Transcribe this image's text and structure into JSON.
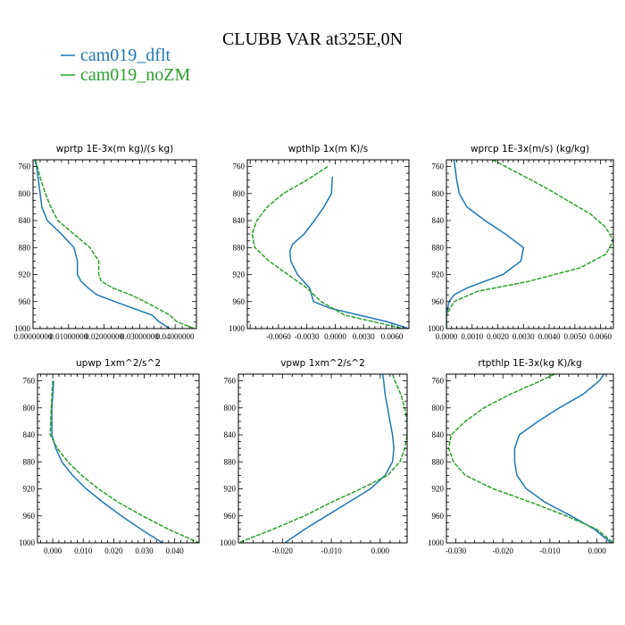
{
  "title": "CLUBB VAR at325E,0N",
  "legend": [
    {
      "label": "cam019_dflt",
      "color": "#1f77b4"
    },
    {
      "label": "cam019_noZM",
      "color": "#2ca02c"
    }
  ],
  "chart_data": [
    {
      "type": "line",
      "title": "wprtp  1E-3x(m kg)/(s kg)",
      "xlim": [
        0.0,
        0.046
      ],
      "ylim": [
        1000,
        750
      ],
      "xticks": [
        0.0,
        0.01,
        0.02,
        0.03,
        0.04
      ],
      "xtick_labels": [
        "0.00000000",
        "0.01000000",
        "0.02000000",
        "0.03000000",
        "0.04000000"
      ],
      "yticks": [
        760,
        800,
        840,
        880,
        920,
        960,
        1000
      ],
      "grid": false,
      "series": [
        {
          "name": "cam019_dflt",
          "color": "#1f77b4",
          "y": [
            750,
            760,
            780,
            800,
            820,
            840,
            860,
            880,
            900,
            920,
            930,
            940,
            950,
            960,
            980,
            990,
            1000
          ],
          "x": [
            0.0005,
            0.001,
            0.0015,
            0.002,
            0.0025,
            0.004,
            0.008,
            0.0115,
            0.0125,
            0.0125,
            0.0135,
            0.0155,
            0.018,
            0.023,
            0.0335,
            0.0355,
            0.0385
          ]
        },
        {
          "name": "cam019_noZM",
          "color": "#2ca02c",
          "y": [
            750,
            760,
            780,
            800,
            820,
            840,
            860,
            880,
            900,
            920,
            930,
            940,
            950,
            960,
            980,
            990,
            1000
          ],
          "x": [
            0.0007,
            0.0012,
            0.0022,
            0.0035,
            0.005,
            0.007,
            0.0115,
            0.016,
            0.0185,
            0.0185,
            0.0192,
            0.0225,
            0.0275,
            0.0315,
            0.0385,
            0.0405,
            0.0455
          ]
        }
      ]
    },
    {
      "type": "line",
      "title": "wpthlp  1x(m K)/s",
      "xlim": [
        -0.0093,
        0.0078
      ],
      "ylim": [
        1000,
        750
      ],
      "xticks": [
        -0.006,
        -0.003,
        0.0,
        0.003,
        0.006
      ],
      "xtick_labels": [
        "-0.0060",
        "-0.0030",
        "0.0000",
        "0.0030",
        "0.0060"
      ],
      "yticks": [
        760,
        800,
        840,
        880,
        920,
        960,
        1000
      ],
      "grid": false,
      "series": [
        {
          "name": "cam019_dflt",
          "color": "#1f77b4",
          "y": [
            775,
            800,
            820,
            840,
            860,
            875,
            885,
            900,
            920,
            940,
            950,
            960,
            970,
            980,
            990,
            1000
          ],
          "x": [
            -0.0003,
            -0.0004,
            -0.0012,
            -0.0022,
            -0.0033,
            -0.0045,
            -0.0048,
            -0.0047,
            -0.004,
            -0.0027,
            -0.0025,
            -0.0023,
            -0.0005,
            0.0025,
            0.0055,
            0.0078
          ]
        },
        {
          "name": "cam019_noZM",
          "color": "#2ca02c",
          "y": [
            760,
            780,
            800,
            820,
            840,
            860,
            880,
            900,
            920,
            940,
            960,
            980,
            1000
          ],
          "x": [
            -0.0008,
            -0.003,
            -0.0055,
            -0.0072,
            -0.0083,
            -0.0088,
            -0.0085,
            -0.007,
            -0.005,
            -0.003,
            -0.0015,
            0.001,
            0.0072
          ]
        }
      ]
    },
    {
      "type": "line",
      "title": "wprcp  1E-3x(m/s) (kg/kg)",
      "xlim": [
        0.0,
        0.0065
      ],
      "ylim": [
        1000,
        750
      ],
      "xticks": [
        0.0,
        0.001,
        0.002,
        0.003,
        0.004,
        0.005,
        0.006
      ],
      "xtick_labels": [
        "0.0000",
        "0.0010",
        "0.0020",
        "0.0030",
        "0.0040",
        "0.0050",
        "0.0060"
      ],
      "yticks": [
        760,
        800,
        840,
        880,
        920,
        960,
        1000
      ],
      "grid": false,
      "series": [
        {
          "name": "cam019_dflt",
          "color": "#1f77b4",
          "y": [
            750,
            780,
            800,
            820,
            840,
            860,
            880,
            900,
            920,
            940,
            950,
            960,
            980,
            1000
          ],
          "x": [
            0.0003,
            0.0004,
            0.0005,
            0.0008,
            0.0015,
            0.0023,
            0.003,
            0.0029,
            0.0022,
            0.0008,
            0.0003,
            0.0001,
            0.0,
            0.0
          ]
        },
        {
          "name": "cam019_noZM",
          "color": "#2ca02c",
          "y": [
            750,
            770,
            790,
            810,
            830,
            850,
            870,
            890,
            910,
            930,
            945,
            960,
            980,
            1000
          ],
          "x": [
            0.0018,
            0.0028,
            0.0038,
            0.0047,
            0.0056,
            0.0062,
            0.0065,
            0.0062,
            0.0052,
            0.0032,
            0.0012,
            0.0003,
            0.0,
            0.0
          ]
        }
      ]
    },
    {
      "type": "line",
      "title": "upwp  1xm^2/s^2",
      "xlim": [
        -0.005,
        0.048
      ],
      "ylim": [
        1000,
        750
      ],
      "xticks": [
        0.0,
        0.01,
        0.02,
        0.03,
        0.04
      ],
      "xtick_labels": [
        "0.000",
        "0.010",
        "0.020",
        "0.030",
        "0.040"
      ],
      "yticks": [
        760,
        800,
        840,
        880,
        920,
        960,
        1000
      ],
      "grid": false,
      "series": [
        {
          "name": "cam019_dflt",
          "color": "#1f77b4",
          "y": [
            760,
            800,
            840,
            860,
            880,
            900,
            920,
            940,
            960,
            980,
            1000
          ],
          "x": [
            0.0003,
            -0.0003,
            -0.0003,
            0.001,
            0.003,
            0.0065,
            0.011,
            0.0165,
            0.0225,
            0.029,
            0.036
          ]
        },
        {
          "name": "cam019_noZM",
          "color": "#2ca02c",
          "y": [
            760,
            800,
            840,
            860,
            880,
            900,
            920,
            940,
            960,
            980,
            1000
          ],
          "x": [
            0.0,
            -0.0005,
            -0.0008,
            0.0015,
            0.005,
            0.0095,
            0.015,
            0.0215,
            0.0295,
            0.038,
            0.048
          ]
        }
      ]
    },
    {
      "type": "line",
      "title": "vpwp  1xm^2/s^2",
      "xlim": [
        -0.029,
        0.0055
      ],
      "ylim": [
        1000,
        750
      ],
      "xticks": [
        -0.02,
        -0.01,
        0.0
      ],
      "xtick_labels": [
        "-0.020",
        "-0.010",
        "0.000"
      ],
      "yticks": [
        760,
        800,
        840,
        880,
        920,
        960,
        1000
      ],
      "grid": false,
      "series": [
        {
          "name": "cam019_dflt",
          "color": "#1f77b4",
          "y": [
            750,
            760,
            780,
            800,
            820,
            840,
            860,
            880,
            900,
            920,
            940,
            960,
            980,
            1000
          ],
          "x": [
            0.0005,
            0.0007,
            0.001,
            0.0015,
            0.002,
            0.0025,
            0.0028,
            0.0025,
            0.001,
            -0.002,
            -0.0065,
            -0.011,
            -0.0155,
            -0.0195
          ]
        },
        {
          "name": "cam019_noZM",
          "color": "#2ca02c",
          "y": [
            750,
            760,
            780,
            800,
            820,
            840,
            860,
            880,
            900,
            920,
            940,
            960,
            980,
            1000
          ],
          "x": [
            0.0025,
            0.003,
            0.0042,
            0.005,
            0.0055,
            0.0055,
            0.005,
            0.004,
            0.0015,
            -0.004,
            -0.01,
            -0.0155,
            -0.022,
            -0.029
          ]
        }
      ]
    },
    {
      "type": "line",
      "title": "rtpthlp  1E-3x(kg K)/kg",
      "xlim": [
        -0.032,
        0.0035
      ],
      "ylim": [
        1000,
        750
      ],
      "xticks": [
        -0.03,
        -0.02,
        -0.01,
        0.0
      ],
      "xtick_labels": [
        "-0.030",
        "-0.020",
        "-0.010",
        "0.000"
      ],
      "yticks": [
        760,
        800,
        840,
        880,
        920,
        960,
        1000
      ],
      "grid": false,
      "series": [
        {
          "name": "cam019_dflt",
          "color": "#1f77b4",
          "y": [
            750,
            760,
            780,
            800,
            820,
            840,
            860,
            880,
            900,
            920,
            940,
            960,
            980,
            1000
          ],
          "x": [
            0.0015,
            0.0005,
            -0.003,
            -0.008,
            -0.0125,
            -0.0165,
            -0.0175,
            -0.0175,
            -0.017,
            -0.015,
            -0.011,
            -0.0055,
            -0.0005,
            0.003
          ]
        },
        {
          "name": "cam019_noZM",
          "color": "#2ca02c",
          "y": [
            750,
            760,
            780,
            800,
            820,
            840,
            860,
            880,
            900,
            920,
            940,
            960,
            980,
            1000
          ],
          "x": [
            -0.009,
            -0.012,
            -0.0185,
            -0.024,
            -0.028,
            -0.031,
            -0.0315,
            -0.0305,
            -0.028,
            -0.022,
            -0.014,
            -0.0065,
            0.0,
            0.0035
          ]
        }
      ]
    }
  ]
}
